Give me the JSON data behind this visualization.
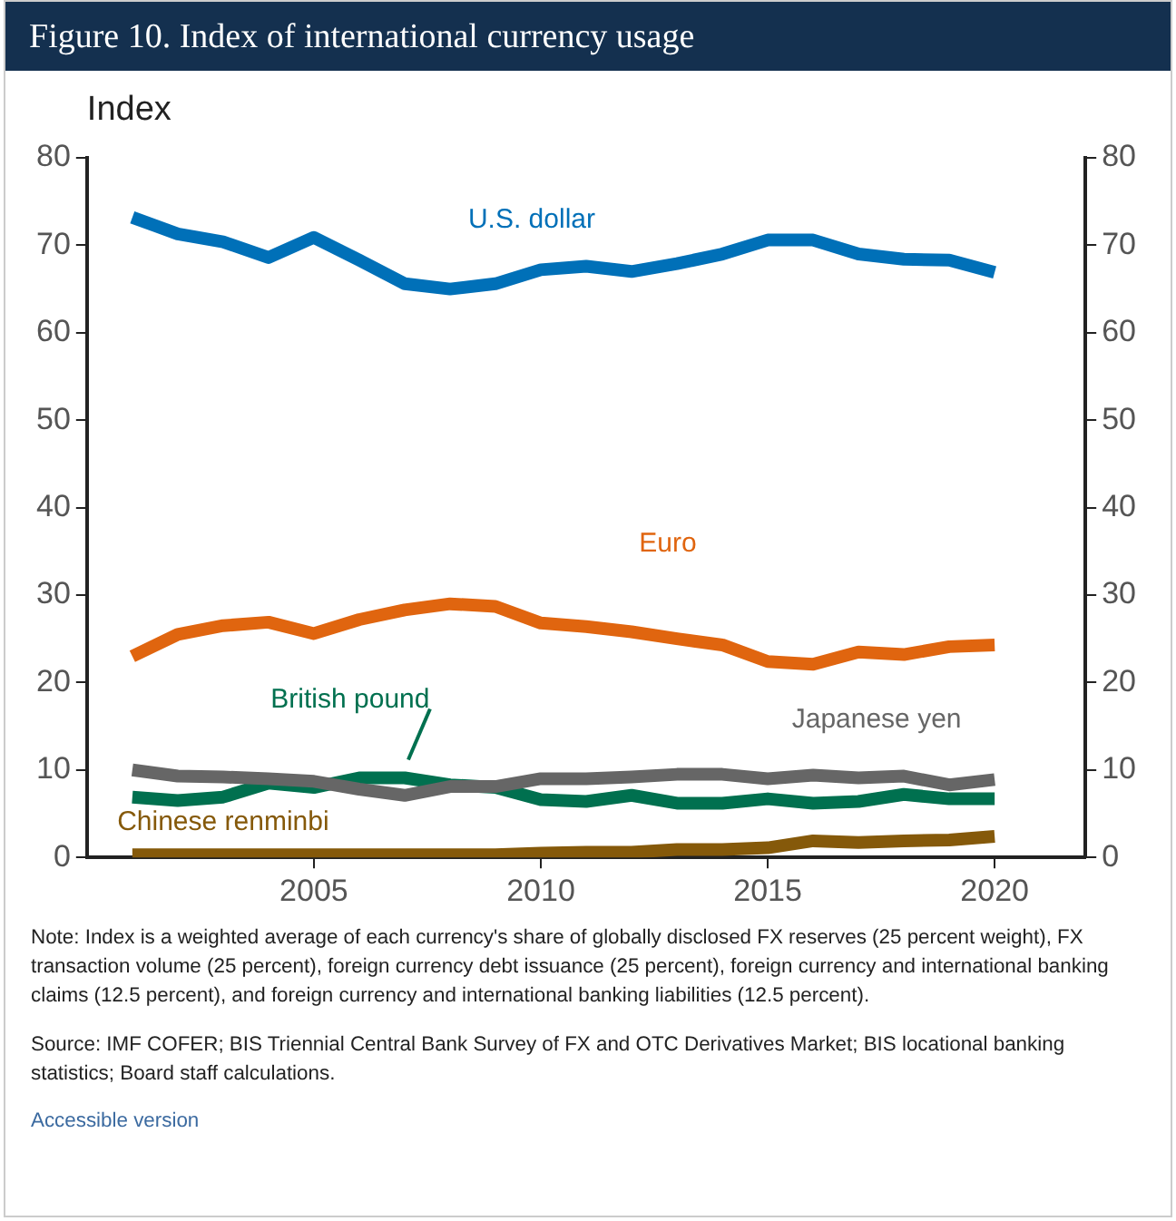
{
  "chart_data": {
    "type": "line",
    "title": "Figure 10. Index of international currency usage",
    "ylabel": "Index",
    "x": [
      2001,
      2002,
      2003,
      2004,
      2005,
      2006,
      2007,
      2008,
      2009,
      2010,
      2011,
      2012,
      2013,
      2014,
      2015,
      2016,
      2017,
      2018,
      2019,
      2020
    ],
    "xlim": [
      2000,
      2022
    ],
    "xticks": [
      2005,
      2010,
      2015,
      2020
    ],
    "ylim": [
      0,
      80
    ],
    "yticks": [
      0,
      10,
      20,
      30,
      40,
      50,
      60,
      70,
      80
    ],
    "y2lim": [
      0,
      80
    ],
    "y2ticks": [
      0,
      10,
      20,
      30,
      40,
      50,
      60,
      70,
      80
    ],
    "series": [
      {
        "name": "U.S. dollar",
        "color": "#0070b8",
        "values": [
          73.2,
          71.3,
          70.4,
          68.6,
          70.9,
          68.3,
          65.6,
          65.0,
          65.6,
          67.2,
          67.6,
          67.0,
          67.9,
          69.0,
          70.6,
          70.6,
          69.0,
          68.4,
          68.3,
          66.9
        ]
      },
      {
        "name": "Euro",
        "color": "#e0650f",
        "values": [
          23.0,
          25.5,
          26.5,
          26.9,
          25.6,
          27.2,
          28.3,
          29.0,
          28.7,
          26.8,
          26.4,
          25.8,
          25.0,
          24.3,
          22.4,
          22.1,
          23.5,
          23.2,
          24.1,
          24.3
        ]
      },
      {
        "name": "Japanese yen",
        "color": "#666666",
        "values": [
          10.0,
          9.3,
          9.2,
          9.0,
          8.7,
          7.8,
          7.1,
          8.1,
          8.1,
          9.0,
          9.0,
          9.2,
          9.5,
          9.5,
          9.0,
          9.4,
          9.1,
          9.3,
          8.3,
          8.9
        ]
      },
      {
        "name": "British pound",
        "color": "#00704f",
        "values": [
          6.9,
          6.5,
          6.9,
          8.5,
          8.0,
          9.1,
          9.1,
          8.3,
          8.0,
          6.6,
          6.4,
          7.1,
          6.2,
          6.2,
          6.7,
          6.2,
          6.4,
          7.2,
          6.7,
          6.7
        ]
      },
      {
        "name": "Chinese renminbi",
        "color": "#85590a",
        "values": [
          0.3,
          0.3,
          0.3,
          0.3,
          0.3,
          0.3,
          0.3,
          0.3,
          0.3,
          0.5,
          0.6,
          0.6,
          0.9,
          0.9,
          1.1,
          1.9,
          1.7,
          1.9,
          2.0,
          2.4
        ]
      }
    ],
    "legend": false,
    "grid": false,
    "line_style": "solid",
    "marker": "none",
    "annotations": [
      "Note: Index is a weighted average of each currency's share of globally disclosed FX reserves (25 percent weight), FX transaction volume (25 percent), foreign currency debt issuance (25 percent), foreign currency and international banking claims (12.5 percent), and foreign currency and international banking liabilities (12.5 percent).",
      "Source: IMF COFER; BIS Triennial Central Bank Survey of FX and OTC Derivatives Market; BIS locational banking statistics; Board staff calculations.",
      "Accessible version"
    ]
  }
}
